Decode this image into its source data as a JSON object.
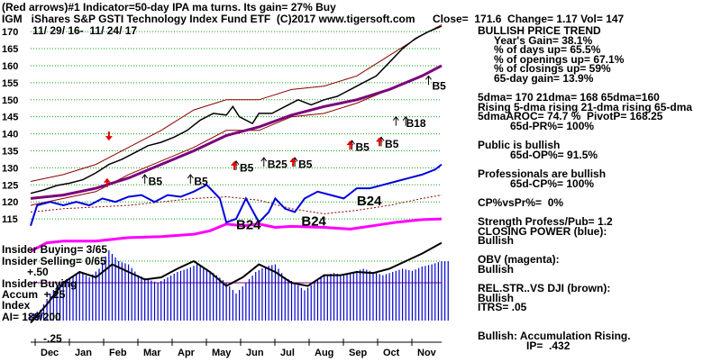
{
  "header": {
    "line1_a": "(Red arrows)#1 Indicator=50-day IPA ma turns. Its gain= 27% Buy",
    "line2": "IGM   iShares S&P GSTI Technology Index Fund ETF  (C)2017 www.tigersoft.com",
    "line2_close": "Close=  171.6  Change= 1.17 Vol= 147",
    "line3": "11/ 29/ 16-  11/ 24/ 17"
  },
  "sidebar": [
    {
      "text": "BULLISH PRICE TREND",
      "indent": 0
    },
    {
      "text": "Year's Gain= 38.1%",
      "indent": 1
    },
    {
      "text": "% of days up= 65.5%",
      "indent": 1
    },
    {
      "text": "% of openings up= 67.1%",
      "indent": 1
    },
    {
      "text": "% of closings up= 59%",
      "indent": 1
    },
    {
      "text": "65-day gain= 13.9%",
      "indent": 1
    },
    {
      "text": "",
      "indent": 0
    },
    {
      "text": "5dma= 170 21dma= 168 65dma=160",
      "indent": 0
    },
    {
      "text": "Rising 5-dma rising 21-dma rising 65-dma",
      "indent": 0
    },
    {
      "text": "5dmaAROC= 74.7 %  PivotP= 168.25",
      "indent": 0
    },
    {
      "text": "65d-PR%= 100%",
      "indent": 2
    },
    {
      "text": "",
      "indent": 0
    },
    {
      "text": "Public is bullish",
      "indent": 0
    },
    {
      "text": "65d-OP%= 91.5%",
      "indent": 2
    },
    {
      "text": "",
      "indent": 0
    },
    {
      "text": "Professionals are bullish",
      "indent": 0
    },
    {
      "text": "65d-CP%= 100%",
      "indent": 2
    },
    {
      "text": "",
      "indent": 0
    },
    {
      "text": "CP%vsPr%=  0%",
      "indent": 0
    },
    {
      "text": "",
      "indent": 0
    },
    {
      "text": "Strength Profess/Pub= 1.2",
      "indent": 0
    },
    {
      "text": "CLOSING POWER (blue):",
      "indent": 0
    },
    {
      "text": "Bullish",
      "indent": 0
    },
    {
      "text": "",
      "indent": 0
    },
    {
      "text": "OBV (magenta):",
      "indent": 0
    },
    {
      "text": "Bullish",
      "indent": 0
    },
    {
      "text": "",
      "indent": 0
    },
    {
      "text": "REL.STR..VS DJI (brown):",
      "indent": 0
    },
    {
      "text": "Bullish",
      "indent": 0
    },
    {
      "text": "ITRS= .05",
      "indent": 0
    },
    {
      "text": "",
      "indent": 0
    },
    {
      "text": "",
      "indent": 0
    },
    {
      "text": "Bullish: Accumulation Rising.",
      "indent": 0
    },
    {
      "text": "IP=  .432",
      "indent": 3
    }
  ],
  "lower_labels": {
    "insider_buying": "Insider Buying= 3/65",
    "insider_selling": "Insider Selling= 0/65",
    "plus50": "+.50",
    "insider_buying_2": "Insider Buying",
    "accum": "Accum  +.25",
    "index": "Index",
    "ai": "AI= 189/200",
    "minus25": "-.25"
  },
  "colors": {
    "price": "#000000",
    "bands": "#8b0000",
    "ma65": "#7b007b",
    "closing_power": "#0000dd",
    "obv": "#ff00ff",
    "rel_strength": "#8b0000",
    "accum_bars": "#0000cc",
    "accum_line": "#000000",
    "grid": "#00aa00",
    "arrow_red": "#dd0000"
  },
  "chart_data": {
    "type": "line",
    "x_labels": [
      "Dec",
      "Jan",
      "Feb",
      "Mar",
      "Apr",
      "May",
      "Jun",
      "Jul",
      "Aug",
      "Sep",
      "Oct",
      "Nov"
    ],
    "y_ticks": [
      115,
      120,
      125,
      130,
      135,
      140,
      145,
      150,
      155,
      160,
      165,
      170
    ],
    "ylim": [
      110,
      174
    ],
    "x_range": [
      0,
      252
    ],
    "price_close": [
      [
        0,
        122.5
      ],
      [
        8,
        123.5
      ],
      [
        16,
        124.8
      ],
      [
        24,
        125.5
      ],
      [
        32,
        126.5
      ],
      [
        40,
        128.5
      ],
      [
        48,
        131
      ],
      [
        56,
        132.5
      ],
      [
        64,
        134.5
      ],
      [
        72,
        136.5
      ],
      [
        80,
        137.5
      ],
      [
        88,
        139
      ],
      [
        96,
        141
      ],
      [
        104,
        144
      ],
      [
        112,
        146
      ],
      [
        120,
        145.5
      ],
      [
        124,
        148
      ],
      [
        128,
        145
      ],
      [
        136,
        143
      ],
      [
        140,
        146
      ],
      [
        148,
        146
      ],
      [
        156,
        148
      ],
      [
        164,
        150
      ],
      [
        172,
        148.5
      ],
      [
        180,
        150
      ],
      [
        188,
        151
      ],
      [
        196,
        153
      ],
      [
        204,
        155
      ],
      [
        212,
        157
      ],
      [
        220,
        161
      ],
      [
        228,
        165
      ],
      [
        236,
        168
      ],
      [
        244,
        170
      ],
      [
        252,
        171.6
      ]
    ],
    "upper_band": [
      [
        0,
        126
      ],
      [
        20,
        128
      ],
      [
        40,
        131
      ],
      [
        60,
        136
      ],
      [
        80,
        141
      ],
      [
        100,
        147
      ],
      [
        120,
        150
      ],
      [
        140,
        150
      ],
      [
        160,
        153
      ],
      [
        180,
        154
      ],
      [
        200,
        157
      ],
      [
        220,
        163
      ],
      [
        240,
        169
      ],
      [
        252,
        172
      ]
    ],
    "lower_band": [
      [
        0,
        119
      ],
      [
        20,
        121
      ],
      [
        40,
        123
      ],
      [
        60,
        128
      ],
      [
        80,
        132
      ],
      [
        100,
        136
      ],
      [
        120,
        141
      ],
      [
        140,
        141
      ],
      [
        160,
        145
      ],
      [
        180,
        146
      ],
      [
        200,
        149
      ],
      [
        220,
        153
      ],
      [
        240,
        157
      ],
      [
        252,
        160
      ]
    ],
    "ma_65": [
      [
        0,
        121
      ],
      [
        20,
        122
      ],
      [
        40,
        124
      ],
      [
        60,
        127
      ],
      [
        80,
        131
      ],
      [
        100,
        135
      ],
      [
        120,
        139.5
      ],
      [
        140,
        142
      ],
      [
        160,
        145.5
      ],
      [
        180,
        148
      ],
      [
        200,
        150
      ],
      [
        220,
        153
      ],
      [
        240,
        157
      ],
      [
        252,
        160
      ]
    ],
    "closing_power": [
      [
        0,
        113
      ],
      [
        4,
        119
      ],
      [
        12,
        120
      ],
      [
        20,
        119
      ],
      [
        28,
        120
      ],
      [
        36,
        119
      ],
      [
        44,
        121
      ],
      [
        52,
        120
      ],
      [
        60,
        121.5
      ],
      [
        68,
        122
      ],
      [
        76,
        120
      ],
      [
        84,
        122
      ],
      [
        92,
        121.5
      ],
      [
        100,
        123
      ],
      [
        108,
        125
      ],
      [
        116,
        121
      ],
      [
        120,
        114
      ],
      [
        126,
        115
      ],
      [
        132,
        121
      ],
      [
        140,
        114
      ],
      [
        146,
        117
      ],
      [
        150,
        121
      ],
      [
        156,
        118
      ],
      [
        162,
        117
      ],
      [
        168,
        121
      ],
      [
        176,
        123
      ],
      [
        184,
        122
      ],
      [
        192,
        121
      ],
      [
        200,
        124
      ],
      [
        208,
        124
      ],
      [
        216,
        125
      ],
      [
        224,
        126
      ],
      [
        232,
        127
      ],
      [
        240,
        128
      ],
      [
        248,
        129.5
      ],
      [
        252,
        131
      ]
    ],
    "obv": [
      [
        0,
        105.5
      ],
      [
        10,
        108
      ],
      [
        20,
        108.5
      ],
      [
        40,
        108.5
      ],
      [
        60,
        109.5
      ],
      [
        80,
        109.8
      ],
      [
        100,
        110.5
      ],
      [
        110,
        111.5
      ],
      [
        120,
        113.5
      ],
      [
        130,
        113
      ],
      [
        140,
        113.5
      ],
      [
        150,
        112.5
      ],
      [
        160,
        112.8
      ],
      [
        180,
        112.5
      ],
      [
        196,
        112
      ],
      [
        210,
        113
      ],
      [
        224,
        114
      ],
      [
        240,
        114.8
      ],
      [
        252,
        115
      ]
    ],
    "rel_strength": [
      [
        0,
        117
      ],
      [
        20,
        118
      ],
      [
        40,
        118.5
      ],
      [
        60,
        119
      ],
      [
        80,
        120
      ],
      [
        100,
        121
      ],
      [
        120,
        121.5
      ],
      [
        140,
        120.5
      ],
      [
        160,
        118
      ],
      [
        180,
        116.5
      ],
      [
        200,
        117.5
      ],
      [
        220,
        119
      ],
      [
        240,
        121
      ],
      [
        252,
        122
      ]
    ],
    "accumulation_bars": [
      [
        0,
        -0.25
      ],
      [
        6,
        -0.2
      ],
      [
        12,
        -0.05
      ],
      [
        18,
        0.05
      ],
      [
        24,
        0.1
      ],
      [
        30,
        0.15
      ],
      [
        36,
        0.1
      ],
      [
        42,
        0.18
      ],
      [
        48,
        0.35
      ],
      [
        54,
        0.25
      ],
      [
        60,
        0.22
      ],
      [
        66,
        0.12
      ],
      [
        72,
        0.08
      ],
      [
        78,
        0.05
      ],
      [
        84,
        0.1
      ],
      [
        90,
        0.15
      ],
      [
        96,
        0.18
      ],
      [
        102,
        0.22
      ],
      [
        108,
        0.18
      ],
      [
        114,
        0.12
      ],
      [
        120,
        0.05
      ],
      [
        126,
        -0.05
      ],
      [
        132,
        0.05
      ],
      [
        138,
        0.15
      ],
      [
        144,
        0.2
      ],
      [
        150,
        0.22
      ],
      [
        156,
        0.1
      ],
      [
        162,
        0.05
      ],
      [
        168,
        -0.02
      ],
      [
        174,
        0.05
      ],
      [
        180,
        0.12
      ],
      [
        186,
        0.14
      ],
      [
        192,
        0.12
      ],
      [
        198,
        0.15
      ],
      [
        204,
        0.18
      ],
      [
        210,
        0.15
      ],
      [
        216,
        0.12
      ],
      [
        222,
        0.15
      ],
      [
        228,
        0.18
      ],
      [
        234,
        0.16
      ],
      [
        240,
        0.2
      ],
      [
        246,
        0.22
      ],
      [
        252,
        0.25
      ]
    ],
    "accumulation_line": [
      [
        0,
        -0.32
      ],
      [
        10,
        -0.15
      ],
      [
        20,
        0.05
      ],
      [
        30,
        0.15
      ],
      [
        40,
        0.1
      ],
      [
        50,
        0.22
      ],
      [
        60,
        0.15
      ],
      [
        70,
        0.08
      ],
      [
        80,
        0.1
      ],
      [
        90,
        0.18
      ],
      [
        100,
        0.25
      ],
      [
        110,
        0.15
      ],
      [
        120,
        0.02
      ],
      [
        130,
        0.1
      ],
      [
        140,
        0.22
      ],
      [
        150,
        0.15
      ],
      [
        160,
        0.05
      ],
      [
        170,
        0.02
      ],
      [
        180,
        0.12
      ],
      [
        190,
        0.12
      ],
      [
        200,
        0.15
      ],
      [
        210,
        0.14
      ],
      [
        220,
        0.18
      ],
      [
        230,
        0.25
      ],
      [
        240,
        0.32
      ],
      [
        252,
        0.42
      ]
    ],
    "annotations": [
      {
        "label": "B5",
        "x": 70,
        "y": 126
      },
      {
        "label": "B5",
        "x": 98,
        "y": 126
      },
      {
        "label": "B5",
        "x": 126,
        "y": 130
      },
      {
        "label": "B25",
        "x": 143,
        "y": 131
      },
      {
        "label": "B5",
        "x": 162,
        "y": 131
      },
      {
        "label": "B5",
        "x": 197,
        "y": 136
      },
      {
        "label": "B5",
        "x": 215,
        "y": 137
      },
      {
        "label": "B18",
        "x": 228,
        "y": 143
      },
      {
        "label": "B5",
        "x": 244,
        "y": 154
      }
    ],
    "big_annotations": [
      {
        "label": "B24",
        "x": 126,
        "y": 112
      },
      {
        "label": "B24",
        "x": 166,
        "y": 113
      },
      {
        "label": "B24",
        "x": 200,
        "y": 119
      }
    ],
    "up_arrows": [
      [
        70,
        128
      ],
      [
        98,
        128
      ],
      [
        126,
        132
      ],
      [
        143,
        133
      ],
      [
        162,
        133
      ],
      [
        197,
        138
      ],
      [
        215,
        139
      ],
      [
        224,
        145
      ],
      [
        230,
        145
      ],
      [
        244,
        157
      ]
    ],
    "red_up_arrows": [
      [
        48,
        127
      ],
      [
        126,
        132
      ],
      [
        162,
        133
      ],
      [
        197,
        138
      ],
      [
        215,
        139
      ]
    ],
    "red_down_arrows": [
      [
        48,
        138
      ]
    ]
  }
}
